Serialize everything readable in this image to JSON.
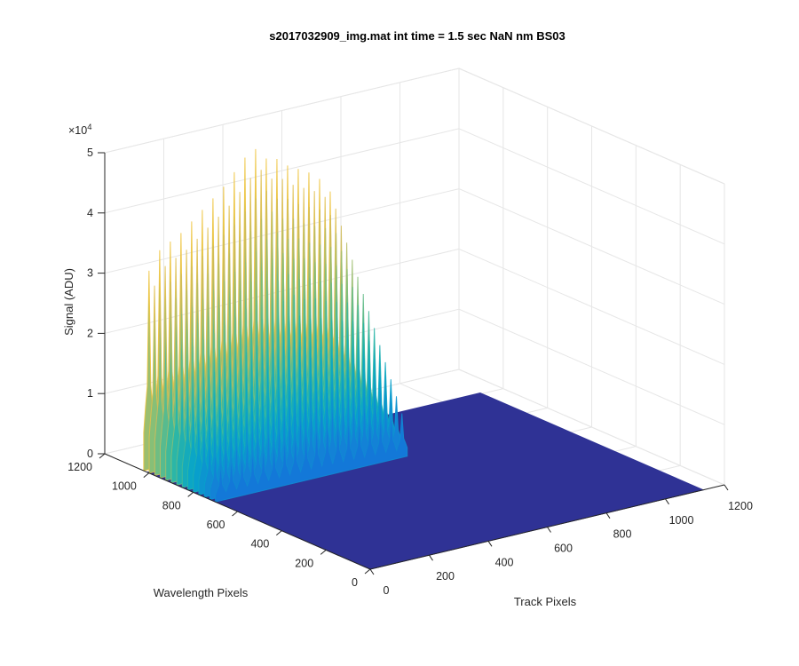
{
  "chart_data": {
    "type": "surface",
    "title": "s2017032909_img.mat int time = 1.5 sec  NaN nm BS03",
    "xlabel": "Track Pixels",
    "ylabel": "Wavelength Pixels",
    "zlabel": "Signal (ADU)",
    "xlim": [
      0,
      1200
    ],
    "ylim": [
      0,
      1200
    ],
    "zlim": [
      0,
      50000
    ],
    "z_exponent_label": "×10",
    "z_exponent_power": "4",
    "x_ticks": [
      "0",
      "200",
      "400",
      "600",
      "800",
      "1000",
      "1200"
    ],
    "y_ticks": [
      "0",
      "200",
      "400",
      "600",
      "800",
      "1000",
      "1200"
    ],
    "z_ticks": [
      "0",
      "1",
      "2",
      "3",
      "4",
      "5"
    ],
    "x_tick_values": [
      0,
      200,
      400,
      600,
      800,
      1000,
      1200
    ],
    "y_tick_values": [
      0,
      200,
      400,
      600,
      800,
      1000,
      1200
    ],
    "z_tick_values": [
      0,
      10000,
      20000,
      30000,
      40000,
      50000
    ],
    "grid": true,
    "colormap": "parula",
    "colors": [
      "#352a87",
      "#0f5cdd",
      "#1481d6",
      "#06a4ca",
      "#2eb7a4",
      "#87bf77",
      "#d1bb59",
      "#fec832",
      "#f9fb0e"
    ],
    "peaks": {
      "track_range": [
        0,
        650
      ],
      "wavelength_range": [
        700,
        1024
      ],
      "count": 18,
      "peak_values_adu": [
        33000,
        36000,
        37000,
        38000,
        39500,
        41000,
        42500,
        44000,
        46000,
        48000,
        49000,
        47000,
        46500,
        45000,
        44000,
        43000,
        41500,
        39000
      ]
    },
    "background_adu": 0
  }
}
